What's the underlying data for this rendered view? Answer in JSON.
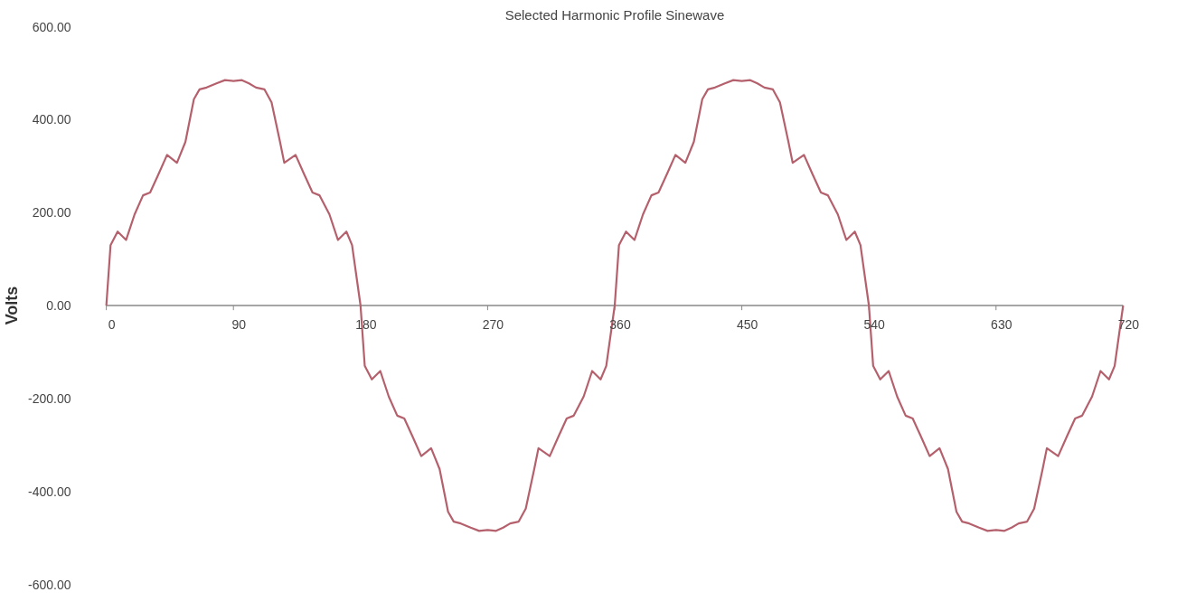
{
  "chart_data": {
    "type": "line",
    "title": "Selected Harmonic Profile Sinewave",
    "ylabel": "Volts",
    "x": [
      0,
      3,
      8,
      14,
      20,
      26,
      31,
      37,
      43,
      50,
      56,
      62,
      66,
      71,
      78,
      84,
      90,
      96,
      101,
      106,
      112,
      117,
      123,
      126,
      134,
      140,
      146,
      151,
      158,
      164,
      170,
      174,
      180,
      183,
      188,
      194,
      200,
      206,
      211,
      217,
      223,
      230,
      236,
      242,
      246,
      251,
      258,
      264,
      270,
      276,
      281,
      286,
      292,
      297,
      303,
      306,
      314,
      320,
      326,
      331,
      338,
      344,
      350,
      354,
      360,
      363,
      368,
      374,
      380,
      386,
      391,
      397,
      403,
      410,
      416,
      422,
      426,
      431,
      438,
      444,
      450,
      456,
      461,
      466,
      472,
      477,
      483,
      486,
      494,
      500,
      506,
      511,
      518,
      524,
      530,
      534,
      540,
      543,
      548,
      554,
      560,
      566,
      571,
      577,
      583,
      590,
      596,
      602,
      606,
      611,
      618,
      624,
      630,
      636,
      641,
      646,
      652,
      657,
      663,
      666,
      674,
      680,
      686,
      691,
      698,
      704,
      710,
      714,
      720
    ],
    "series": [
      {
        "color": "#b5616d",
        "values": [
          0,
          130,
          159,
          141,
          196,
          237,
          243,
          283,
          324,
          307,
          352,
          444,
          465,
          469,
          478,
          485,
          483,
          485,
          478,
          469,
          465,
          437,
          352,
          307,
          324,
          283,
          243,
          237,
          196,
          141,
          159,
          130,
          0,
          -130,
          -159,
          -141,
          -196,
          -237,
          -243,
          -283,
          -324,
          -307,
          -352,
          -444,
          -465,
          -469,
          -478,
          -485,
          -483,
          -485,
          -478,
          -469,
          -465,
          -437,
          -352,
          -307,
          -324,
          -283,
          -243,
          -237,
          -196,
          -141,
          -159,
          -130,
          0,
          130,
          159,
          141,
          196,
          237,
          243,
          283,
          324,
          307,
          352,
          444,
          465,
          469,
          478,
          485,
          483,
          485,
          478,
          469,
          465,
          437,
          352,
          307,
          324,
          283,
          243,
          237,
          196,
          141,
          159,
          130,
          0,
          -130,
          -159,
          -141,
          -196,
          -237,
          -243,
          -283,
          -324,
          -307,
          -352,
          -444,
          -465,
          -469,
          -478,
          -485,
          -483,
          -485,
          -478,
          -469,
          -465,
          -437,
          -352,
          -307,
          -324,
          -283,
          -243,
          -237,
          -196,
          -141,
          -159,
          -130,
          0
        ]
      }
    ],
    "xlim": [
      0,
      720
    ],
    "ylim": [
      -600,
      600
    ],
    "xticks": [
      0,
      90,
      180,
      270,
      360,
      450,
      540,
      630,
      720
    ],
    "yticks": [
      {
        "value": 600,
        "label": "600.00"
      },
      {
        "value": 400,
        "label": "400.00"
      },
      {
        "value": 200,
        "label": "200.00"
      },
      {
        "value": 0,
        "label": "0.00"
      },
      {
        "value": -200,
        "label": "-200.00"
      },
      {
        "value": -400,
        "label": "-400.00"
      },
      {
        "value": -600,
        "label": "-600.00"
      }
    ],
    "grid": false,
    "marker": "none",
    "line_style": "solid"
  }
}
